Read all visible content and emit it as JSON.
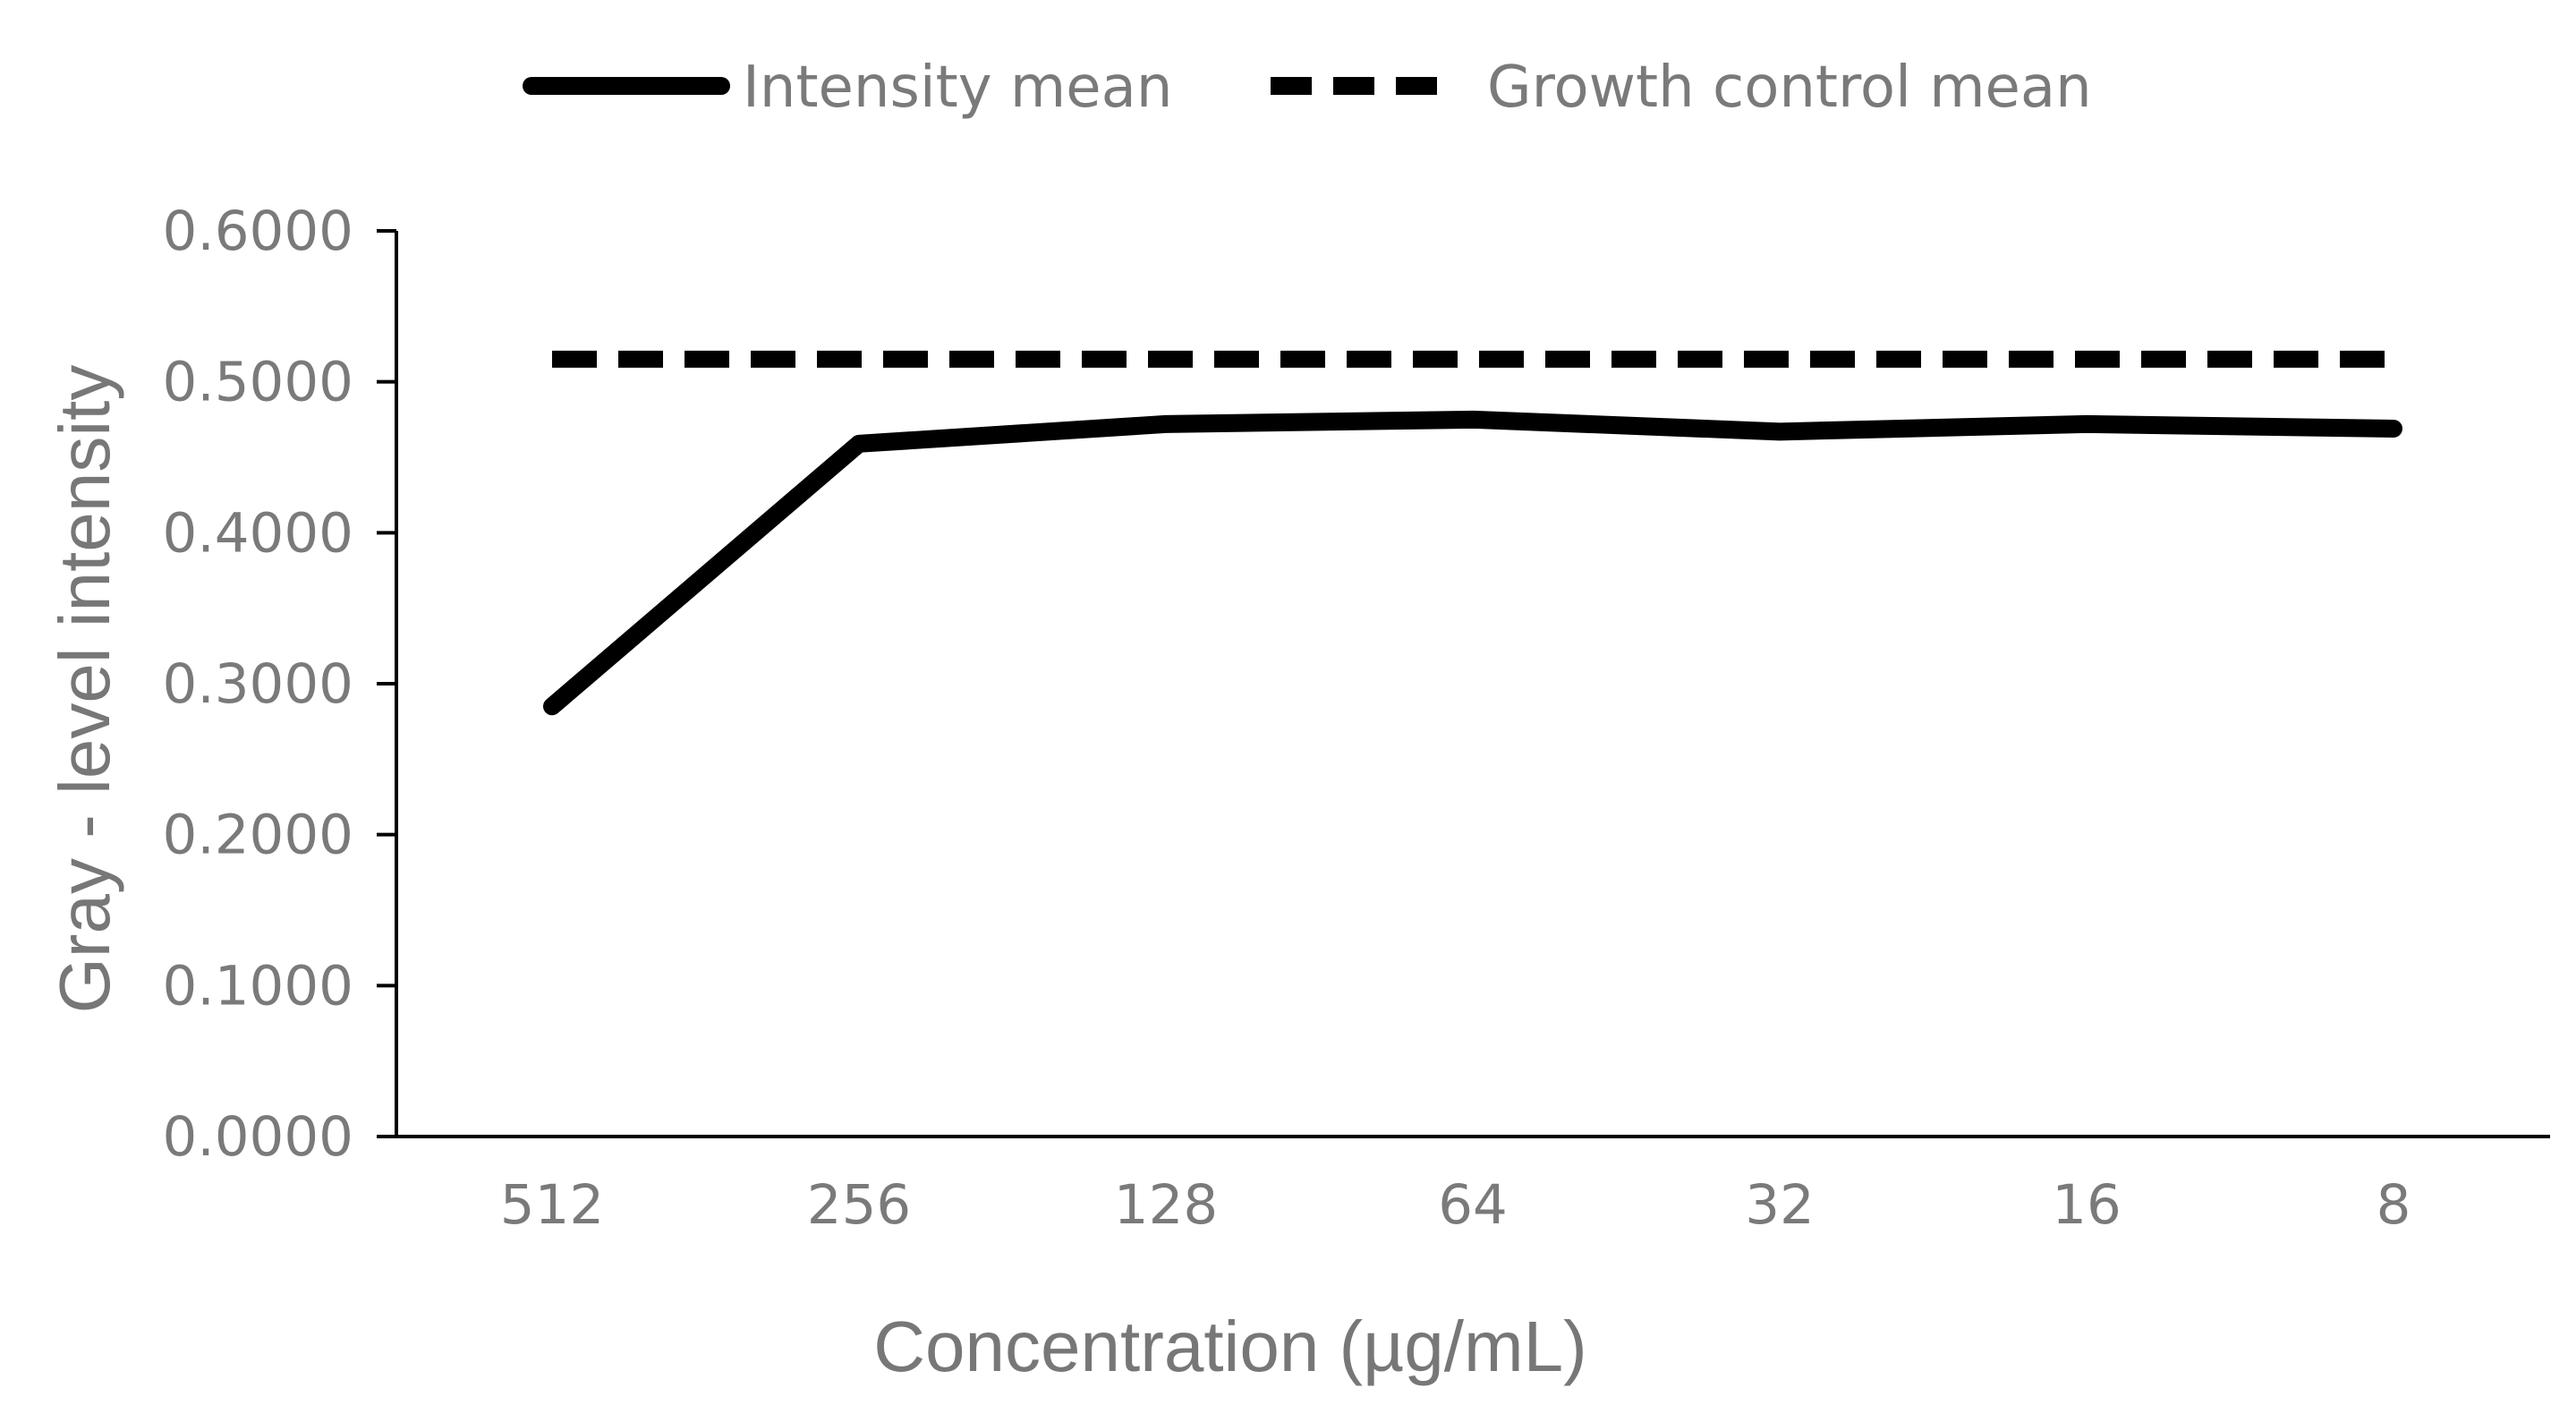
{
  "chart_data": {
    "type": "line",
    "title": "",
    "xlabel": "Concentration  (µg/mL)",
    "ylabel": "Gray - level intensity",
    "categories": [
      "512",
      "256",
      "128",
      "64",
      "32",
      "16",
      "8"
    ],
    "y_tick_labels": [
      "0.0000",
      "0.1000",
      "0.2000",
      "0.3000",
      "0.4000",
      "0.5000",
      "0.6000"
    ],
    "ylim": [
      0,
      0.6
    ],
    "grid": false,
    "legend_position": "top-center",
    "series": [
      {
        "name": "Intensity mean",
        "style": "solid",
        "color": "#000000",
        "values": [
          0.285,
          0.459,
          0.472,
          0.475,
          0.467,
          0.472,
          0.469
        ]
      },
      {
        "name": "Growth control mean",
        "style": "dashed",
        "color": "#000000",
        "values": [
          0.515,
          0.515,
          0.515,
          0.515,
          0.515,
          0.515,
          0.515
        ]
      }
    ]
  }
}
